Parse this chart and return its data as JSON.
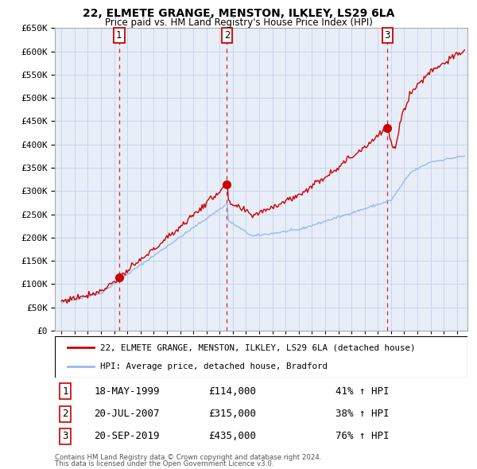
{
  "title": "22, ELMETE GRANGE, MENSTON, ILKLEY, LS29 6LA",
  "subtitle": "Price paid vs. HM Land Registry's House Price Index (HPI)",
  "ylim": [
    0,
    650000
  ],
  "yticks": [
    0,
    50000,
    100000,
    150000,
    200000,
    250000,
    300000,
    350000,
    400000,
    450000,
    500000,
    550000,
    600000,
    650000
  ],
  "legend_line1": "22, ELMETE GRANGE, MENSTON, ILKLEY, LS29 6LA (detached house)",
  "legend_line2": "HPI: Average price, detached house, Bradford",
  "sale1": {
    "num": 1,
    "date": "18-MAY-1999",
    "price": 114000,
    "pct": "41%",
    "dir": "↑",
    "label": "HPI"
  },
  "sale2": {
    "num": 2,
    "date": "20-JUL-2007",
    "price": 315000,
    "pct": "38%",
    "dir": "↑",
    "label": "HPI"
  },
  "sale3": {
    "num": 3,
    "date": "20-SEP-2019",
    "price": 435000,
    "pct": "76%",
    "dir": "↑",
    "label": "HPI"
  },
  "footnote1": "Contains HM Land Registry data © Crown copyright and database right 2024.",
  "footnote2": "This data is licensed under the Open Government Licence v3.0.",
  "red_color": "#cc0000",
  "blue_color": "#99bbee",
  "chart_bg": "#e8eef8",
  "grid_color": "#c8d4e8",
  "background_color": "#ffffff"
}
